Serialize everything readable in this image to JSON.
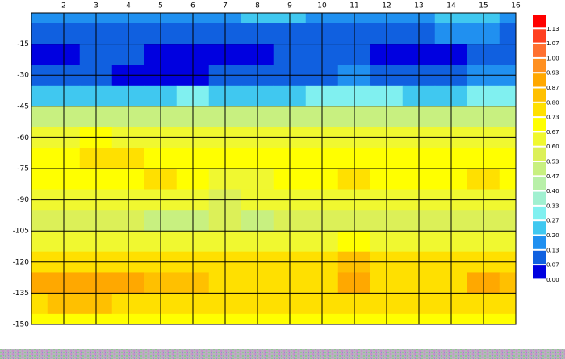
{
  "chart_data": {
    "type": "contour",
    "x": [
      1,
      2,
      3,
      4,
      5,
      6,
      7,
      8,
      9,
      10,
      11,
      12,
      13,
      14,
      15,
      16
    ],
    "y": [
      0,
      -10,
      -20,
      -30,
      -40,
      -50,
      -60,
      -70,
      -80,
      -90,
      -100,
      -110,
      -120,
      -130,
      -140,
      -150
    ],
    "z": [
      [
        0.13,
        0.13,
        0.13,
        0.13,
        0.13,
        0.13,
        0.13,
        0.2,
        0.2,
        0.13,
        0.13,
        0.13,
        0.13,
        0.2,
        0.2,
        0.13
      ],
      [
        0.07,
        0.07,
        0.07,
        0.07,
        0.07,
        0.07,
        0.07,
        0.07,
        0.07,
        0.07,
        0.07,
        0.07,
        0.07,
        0.13,
        0.13,
        0.07
      ],
      [
        0.0,
        0.0,
        0.07,
        0.07,
        0.0,
        0.0,
        0.0,
        0.0,
        0.07,
        0.07,
        0.07,
        0.0,
        0.0,
        0.0,
        0.07,
        0.07
      ],
      [
        0.07,
        0.07,
        0.07,
        0.0,
        0.0,
        0.0,
        0.07,
        0.07,
        0.07,
        0.07,
        0.13,
        0.07,
        0.07,
        0.07,
        0.13,
        0.13
      ],
      [
        0.2,
        0.2,
        0.2,
        0.2,
        0.2,
        0.27,
        0.2,
        0.2,
        0.2,
        0.27,
        0.27,
        0.27,
        0.2,
        0.2,
        0.27,
        0.27
      ],
      [
        0.47,
        0.47,
        0.47,
        0.47,
        0.47,
        0.47,
        0.47,
        0.47,
        0.47,
        0.47,
        0.47,
        0.47,
        0.47,
        0.47,
        0.47,
        0.47
      ],
      [
        0.6,
        0.6,
        0.67,
        0.6,
        0.6,
        0.6,
        0.6,
        0.6,
        0.6,
        0.6,
        0.6,
        0.6,
        0.6,
        0.6,
        0.6,
        0.6
      ],
      [
        0.67,
        0.67,
        0.73,
        0.73,
        0.67,
        0.67,
        0.67,
        0.67,
        0.67,
        0.67,
        0.67,
        0.67,
        0.67,
        0.67,
        0.67,
        0.67
      ],
      [
        0.67,
        0.67,
        0.67,
        0.67,
        0.73,
        0.67,
        0.6,
        0.6,
        0.67,
        0.67,
        0.73,
        0.67,
        0.67,
        0.67,
        0.73,
        0.67
      ],
      [
        0.6,
        0.6,
        0.6,
        0.6,
        0.6,
        0.6,
        0.53,
        0.6,
        0.6,
        0.6,
        0.6,
        0.6,
        0.6,
        0.6,
        0.6,
        0.6
      ],
      [
        0.53,
        0.53,
        0.53,
        0.53,
        0.47,
        0.47,
        0.53,
        0.47,
        0.53,
        0.53,
        0.53,
        0.53,
        0.53,
        0.53,
        0.53,
        0.53
      ],
      [
        0.6,
        0.6,
        0.6,
        0.6,
        0.6,
        0.6,
        0.6,
        0.6,
        0.6,
        0.6,
        0.67,
        0.6,
        0.6,
        0.6,
        0.6,
        0.6
      ],
      [
        0.73,
        0.73,
        0.73,
        0.73,
        0.73,
        0.73,
        0.73,
        0.73,
        0.73,
        0.73,
        0.8,
        0.73,
        0.73,
        0.73,
        0.73,
        0.73
      ],
      [
        0.87,
        0.87,
        0.87,
        0.87,
        0.8,
        0.8,
        0.73,
        0.73,
        0.73,
        0.73,
        0.87,
        0.73,
        0.73,
        0.73,
        0.87,
        0.8
      ],
      [
        0.73,
        0.8,
        0.8,
        0.73,
        0.73,
        0.73,
        0.73,
        0.73,
        0.73,
        0.73,
        0.73,
        0.73,
        0.73,
        0.73,
        0.73,
        0.73
      ],
      [
        0.67,
        0.67,
        0.67,
        0.67,
        0.67,
        0.67,
        0.67,
        0.67,
        0.67,
        0.67,
        0.67,
        0.67,
        0.67,
        0.67,
        0.67,
        0.67
      ]
    ],
    "xlim": [
      1,
      16
    ],
    "ylim": [
      -150,
      0
    ],
    "xticks": [
      2,
      3,
      4,
      5,
      6,
      7,
      8,
      9,
      10,
      11,
      12,
      13,
      14,
      15,
      16
    ],
    "yticks": [
      -15,
      -30,
      -45,
      -60,
      -75,
      -90,
      -105,
      -120,
      -135,
      -150
    ],
    "grid": true,
    "levels": [
      {
        "value": 0,
        "label": "0.00"
      },
      {
        "value": 0.07,
        "label": "0.07"
      },
      {
        "value": 0.13,
        "label": "0.13"
      },
      {
        "value": 0.2,
        "label": "0.20"
      },
      {
        "value": 0.27,
        "label": "0.27"
      },
      {
        "value": 0.33,
        "label": "0.33"
      },
      {
        "value": 0.4,
        "label": "0.40"
      },
      {
        "value": 0.47,
        "label": "0.47"
      },
      {
        "value": 0.53,
        "label": "0.53"
      },
      {
        "value": 0.6,
        "label": "0.60"
      },
      {
        "value": 0.67,
        "label": "0.67"
      },
      {
        "value": 0.73,
        "label": "0.73"
      },
      {
        "value": 0.8,
        "label": "0.80"
      },
      {
        "value": 0.87,
        "label": "0.87"
      },
      {
        "value": 0.93,
        "label": "0.93"
      },
      {
        "value": 1,
        "label": "1.00"
      },
      {
        "value": 1.07,
        "label": "1.07"
      },
      {
        "value": 1.13,
        "label": "1.13"
      }
    ],
    "level_colors": [
      "#0000e0",
      "#1060e0",
      "#2090f0",
      "#40c8f0",
      "#80f0f0",
      "#a0f0d0",
      "#b8f0a8",
      "#c8f080",
      "#dcf058",
      "#f0f830",
      "#ffff00",
      "#ffe000",
      "#ffc000",
      "#ffa800",
      "#ff9020",
      "#ff7030",
      "#ff4020",
      "#ff0000"
    ]
  }
}
